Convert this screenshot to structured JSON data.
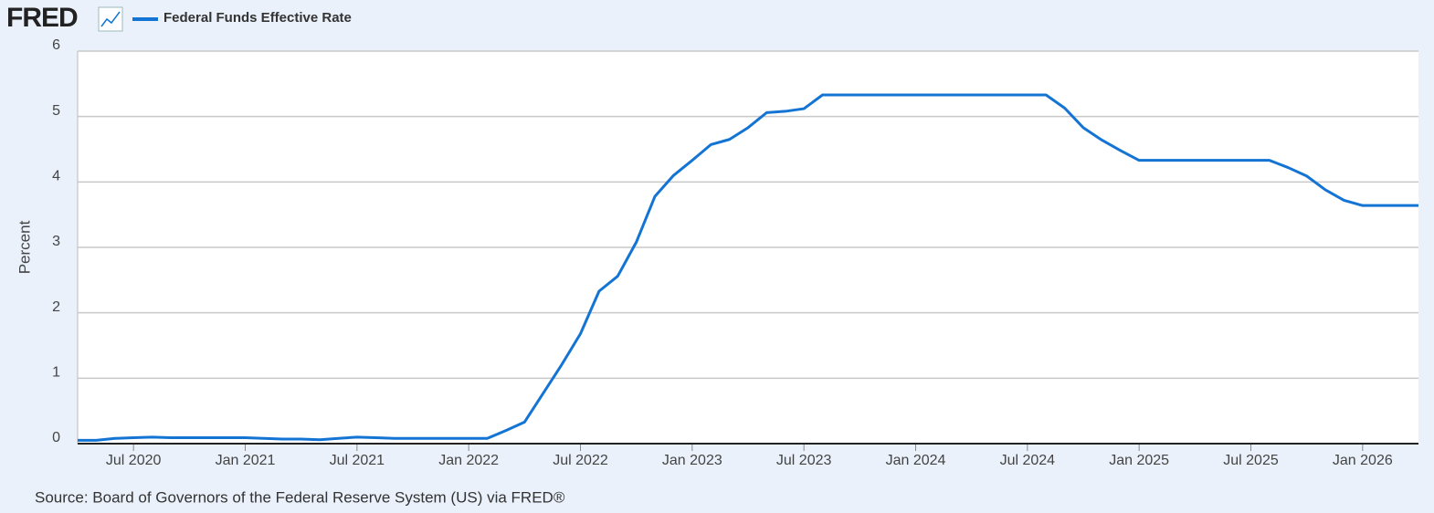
{
  "logo": "FRED",
  "chart_data": {
    "type": "line",
    "y_label": "Percent",
    "source": "Source: Board of Governors of the Federal Reserve System (US) via FRED®",
    "x": [
      "2020-04",
      "2020-05",
      "2020-06",
      "2020-07",
      "2020-08",
      "2020-09",
      "2020-10",
      "2020-11",
      "2020-12",
      "2021-01",
      "2021-02",
      "2021-03",
      "2021-04",
      "2021-05",
      "2021-06",
      "2021-07",
      "2021-08",
      "2021-09",
      "2021-10",
      "2021-11",
      "2021-12",
      "2022-01",
      "2022-02",
      "2022-03",
      "2022-04",
      "2022-05",
      "2022-06",
      "2022-07",
      "2022-08",
      "2022-09",
      "2022-10",
      "2022-11",
      "2022-12",
      "2023-01",
      "2023-02",
      "2023-03",
      "2023-04",
      "2023-05",
      "2023-06",
      "2023-07",
      "2023-08",
      "2023-09",
      "2023-10",
      "2023-11",
      "2023-12",
      "2024-01",
      "2024-02",
      "2024-03",
      "2024-04",
      "2024-05",
      "2024-06",
      "2024-07",
      "2024-08",
      "2024-09",
      "2024-10",
      "2024-11",
      "2024-12",
      "2025-01",
      "2025-02",
      "2025-03",
      "2025-04",
      "2025-05",
      "2025-06",
      "2025-07",
      "2025-08",
      "2025-09",
      "2025-10",
      "2025-11",
      "2025-12",
      "2026-01",
      "2026-02",
      "2026-03",
      "2026-04"
    ],
    "series": [
      {
        "name": "Federal Funds Effective Rate",
        "color": "#1474d4",
        "values": [
          0.05,
          0.05,
          0.08,
          0.09,
          0.1,
          0.09,
          0.09,
          0.09,
          0.09,
          0.09,
          0.08,
          0.07,
          0.07,
          0.06,
          0.08,
          0.1,
          0.09,
          0.08,
          0.08,
          0.08,
          0.08,
          0.08,
          0.08,
          0.2,
          0.33,
          0.77,
          1.21,
          1.68,
          2.33,
          2.56,
          3.08,
          3.78,
          4.1,
          4.33,
          4.57,
          4.65,
          4.83,
          5.06,
          5.08,
          5.12,
          5.33,
          5.33,
          5.33,
          5.33,
          5.33,
          5.33,
          5.33,
          5.33,
          5.33,
          5.33,
          5.33,
          5.33,
          5.33,
          5.13,
          4.83,
          4.64,
          4.48,
          4.33,
          4.33,
          4.33,
          4.33,
          4.33,
          4.33,
          4.33,
          4.33,
          4.22,
          4.09,
          3.88,
          3.72,
          3.64,
          3.64,
          3.64,
          3.64
        ]
      }
    ],
    "xlim": [
      "2020-04",
      "2026-04"
    ],
    "xticks": [
      {
        "value": "2020-07",
        "label": "Jul 2020"
      },
      {
        "value": "2021-01",
        "label": "Jan 2021"
      },
      {
        "value": "2021-07",
        "label": "Jul 2021"
      },
      {
        "value": "2022-01",
        "label": "Jan 2022"
      },
      {
        "value": "2022-07",
        "label": "Jul 2022"
      },
      {
        "value": "2023-01",
        "label": "Jan 2023"
      },
      {
        "value": "2023-07",
        "label": "Jul 2023"
      },
      {
        "value": "2024-01",
        "label": "Jan 2024"
      },
      {
        "value": "2024-07",
        "label": "Jul 2024"
      },
      {
        "value": "2025-01",
        "label": "Jan 2025"
      },
      {
        "value": "2025-07",
        "label": "Jul 2025"
      },
      {
        "value": "2026-01",
        "label": "Jan 2026"
      }
    ],
    "ylim": [
      0,
      6
    ],
    "yticks": [
      0,
      1,
      2,
      3,
      4,
      5,
      6
    ],
    "grid": true
  }
}
